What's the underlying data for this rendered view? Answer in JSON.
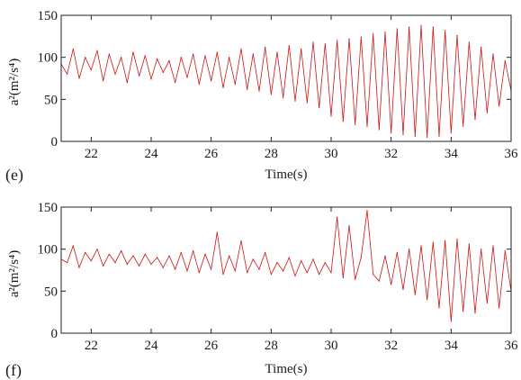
{
  "figure": {
    "panels": [
      {
        "label": "(e)"
      },
      {
        "label": "(f)"
      }
    ]
  },
  "colors": {
    "trace": "#cc1414",
    "axis": "#222222"
  },
  "chart_data": [
    {
      "type": "line",
      "title": "",
      "panel_label": "(e)",
      "xlabel": "Time(s)",
      "ylabel": "a²(m²/s⁴)",
      "xlim": [
        21,
        36
      ],
      "ylim": [
        0,
        150
      ],
      "xticks": [
        22,
        24,
        26,
        28,
        30,
        32,
        34,
        36
      ],
      "yticks": [
        0,
        50,
        100,
        150
      ],
      "xtick_labels": [
        "22",
        "24",
        "26",
        "28",
        "30",
        "32",
        "34",
        "36"
      ],
      "ytick_labels": [
        "0",
        "50",
        "100",
        "150"
      ],
      "grid": false,
      "series": [
        {
          "x": [
            21,
            21.2,
            21.4,
            21.6,
            21.8,
            22,
            22.2,
            22.4,
            22.6,
            22.8,
            23,
            23.2,
            23.4,
            23.6,
            23.8,
            24,
            24.2,
            24.4,
            24.6,
            24.8,
            25,
            25.2,
            25.4,
            25.6,
            25.8,
            26,
            26.2,
            26.4,
            26.6,
            26.8,
            27,
            27.2,
            27.4,
            27.6,
            27.8,
            28,
            28.2,
            28.4,
            28.6,
            28.8,
            29,
            29.2,
            29.4,
            29.6,
            29.8,
            30,
            30.2,
            30.4,
            30.6,
            30.8,
            31,
            31.2,
            31.4,
            31.6,
            31.8,
            32,
            32.2,
            32.4,
            32.6,
            32.8,
            33,
            33.2,
            33.4,
            33.6,
            33.8,
            34,
            34.2,
            34.4,
            34.6,
            34.8,
            35,
            35.2,
            35.4,
            35.6,
            35.8,
            36
          ],
          "y": [
            92,
            80,
            110,
            75,
            100,
            85,
            108,
            72,
            104,
            80,
            100,
            70,
            106,
            78,
            102,
            74,
            98,
            82,
            96,
            70,
            100,
            76,
            104,
            68,
            102,
            72,
            106,
            64,
            100,
            68,
            110,
            62,
            104,
            60,
            112,
            56,
            106,
            52,
            114,
            48,
            110,
            46,
            118,
            40,
            116,
            30,
            120,
            24,
            122,
            20,
            124,
            18,
            128,
            14,
            130,
            10,
            134,
            8,
            136,
            6,
            138,
            5,
            136,
            6,
            132,
            10,
            126,
            18,
            118,
            26,
            112,
            34,
            104,
            42,
            96,
            60
          ]
        }
      ]
    },
    {
      "type": "line",
      "title": "",
      "panel_label": "(f)",
      "xlabel": "Time(s)",
      "ylabel": "a²(m²/s⁴)",
      "xlim": [
        21,
        36
      ],
      "ylim": [
        0,
        150
      ],
      "xticks": [
        22,
        24,
        26,
        28,
        30,
        32,
        34,
        36
      ],
      "yticks": [
        0,
        50,
        100,
        150
      ],
      "xtick_labels": [
        "22",
        "24",
        "26",
        "28",
        "30",
        "32",
        "34",
        "36"
      ],
      "ytick_labels": [
        "0",
        "50",
        "100",
        "150"
      ],
      "grid": false,
      "series": [
        {
          "x": [
            21,
            21.2,
            21.4,
            21.6,
            21.8,
            22,
            22.2,
            22.4,
            22.6,
            22.8,
            23,
            23.2,
            23.4,
            23.6,
            23.8,
            24,
            24.2,
            24.4,
            24.6,
            24.8,
            25,
            25.2,
            25.4,
            25.6,
            25.8,
            26,
            26.2,
            26.4,
            26.6,
            26.8,
            27,
            27.2,
            27.4,
            27.6,
            27.8,
            28,
            28.2,
            28.4,
            28.6,
            28.8,
            29,
            29.2,
            29.4,
            29.6,
            29.8,
            30,
            30.2,
            30.4,
            30.6,
            30.8,
            31,
            31.2,
            31.4,
            31.6,
            31.8,
            32,
            32.2,
            32.4,
            32.6,
            32.8,
            33,
            33.2,
            33.4,
            33.6,
            33.8,
            34,
            34.2,
            34.4,
            34.6,
            34.8,
            35,
            35.2,
            35.4,
            35.6,
            35.8,
            36
          ],
          "y": [
            88,
            84,
            104,
            78,
            96,
            86,
            100,
            80,
            94,
            84,
            98,
            82,
            92,
            80,
            94,
            82,
            90,
            78,
            92,
            76,
            96,
            74,
            98,
            72,
            94,
            76,
            120,
            70,
            92,
            74,
            110,
            72,
            88,
            76,
            96,
            70,
            84,
            74,
            90,
            68,
            86,
            72,
            88,
            70,
            84,
            72,
            138,
            66,
            128,
            64,
            90,
            146,
            70,
            62,
            92,
            58,
            96,
            52,
            100,
            46,
            104,
            40,
            108,
            30,
            110,
            14,
            112,
            26,
            106,
            24,
            100,
            36,
            104,
            30,
            98,
            50
          ]
        }
      ]
    }
  ]
}
